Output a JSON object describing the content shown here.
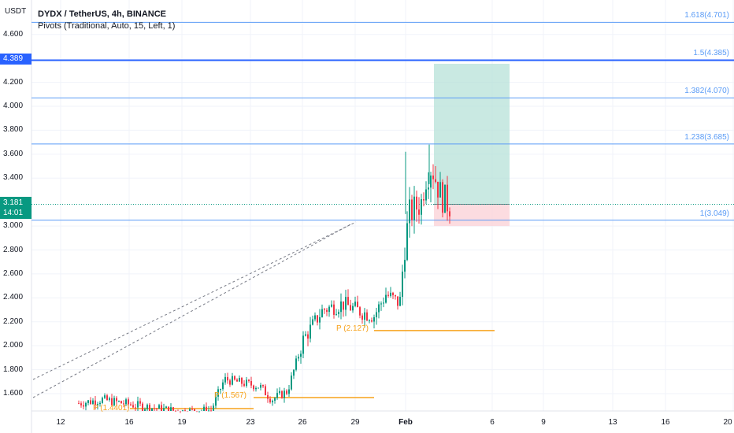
{
  "header": {
    "title": "DYDX / TetherUS, 4h, BINANCE",
    "indicator": "Pivots (Traditional, Auto, 15, Left, 1)"
  },
  "y_axis": {
    "unit": "USDT",
    "ticks": [
      "4.600",
      "4.200",
      "4.000",
      "3.800",
      "3.600",
      "3.400",
      "3.000",
      "2.800",
      "2.600",
      "2.400",
      "2.200",
      "2.000",
      "1.800",
      "1.600"
    ]
  },
  "x_axis": {
    "ticks": [
      "12",
      "16",
      "19",
      "23",
      "26",
      "29",
      "Feb",
      "6",
      "9",
      "13",
      "16",
      "20"
    ]
  },
  "badges": {
    "target_price": "4.389",
    "last_price": "3.181",
    "countdown": "14:01"
  },
  "fib_levels": [
    {
      "label": "1.618(4.701)",
      "price": 4.701
    },
    {
      "label": "1.5(4.385)",
      "price": 4.385
    },
    {
      "label": "1.382(4.070)",
      "price": 4.07
    },
    {
      "label": "1.238(3.685)",
      "price": 3.685
    },
    {
      "label": "1(3.049)",
      "price": 3.049
    }
  ],
  "pivots": [
    {
      "label": "P (1.4401)",
      "price": 1.44
    },
    {
      "label": "P (1.567)",
      "price": 1.567
    },
    {
      "label": "P (2.127)",
      "price": 2.127
    }
  ],
  "colors": {
    "up": "#089981",
    "down": "#f23645",
    "fib": "#5b9cf6",
    "pivot": "#f7a21b",
    "target_line": "#2962ff",
    "profit_zone": "#b2dfd6",
    "loss_zone": "#fbd3d8"
  }
}
